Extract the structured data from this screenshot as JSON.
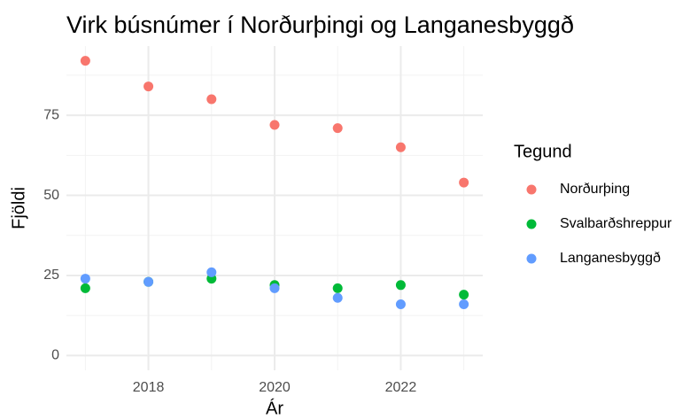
{
  "chart_data": {
    "type": "scatter",
    "title": "Virk búsnúmer í Norðurþingi og Langanesbyggð",
    "x_label": "Ár",
    "y_label": "Fjöldi",
    "legend_title": "Tegund",
    "x": [
      2017,
      2018,
      2019,
      2020,
      2021,
      2022,
      2023
    ],
    "series": [
      {
        "name": "Norðurþing",
        "color": "#F8766D",
        "values": [
          92,
          84,
          80,
          72,
          71,
          65,
          54
        ]
      },
      {
        "name": "Svalbarðshreppur",
        "color": "#00BA38",
        "values": [
          21,
          23,
          24,
          22,
          21,
          22,
          19
        ]
      },
      {
        "name": "Langanesbyggð",
        "color": "#619CFF",
        "values": [
          24,
          23,
          26,
          21,
          18,
          16,
          16
        ]
      }
    ],
    "xlim": [
      2016.7,
      2023.3
    ],
    "xticks": [
      2018,
      2020,
      2022
    ],
    "xminor": [
      2017,
      2019,
      2021,
      2023
    ],
    "ylim": [
      -4.6,
      96.6
    ],
    "yticks": [
      0,
      25,
      50,
      75
    ],
    "yminor": [
      12.5,
      37.5,
      62.5,
      87.5
    ],
    "grid": true,
    "legend": "right"
  }
}
